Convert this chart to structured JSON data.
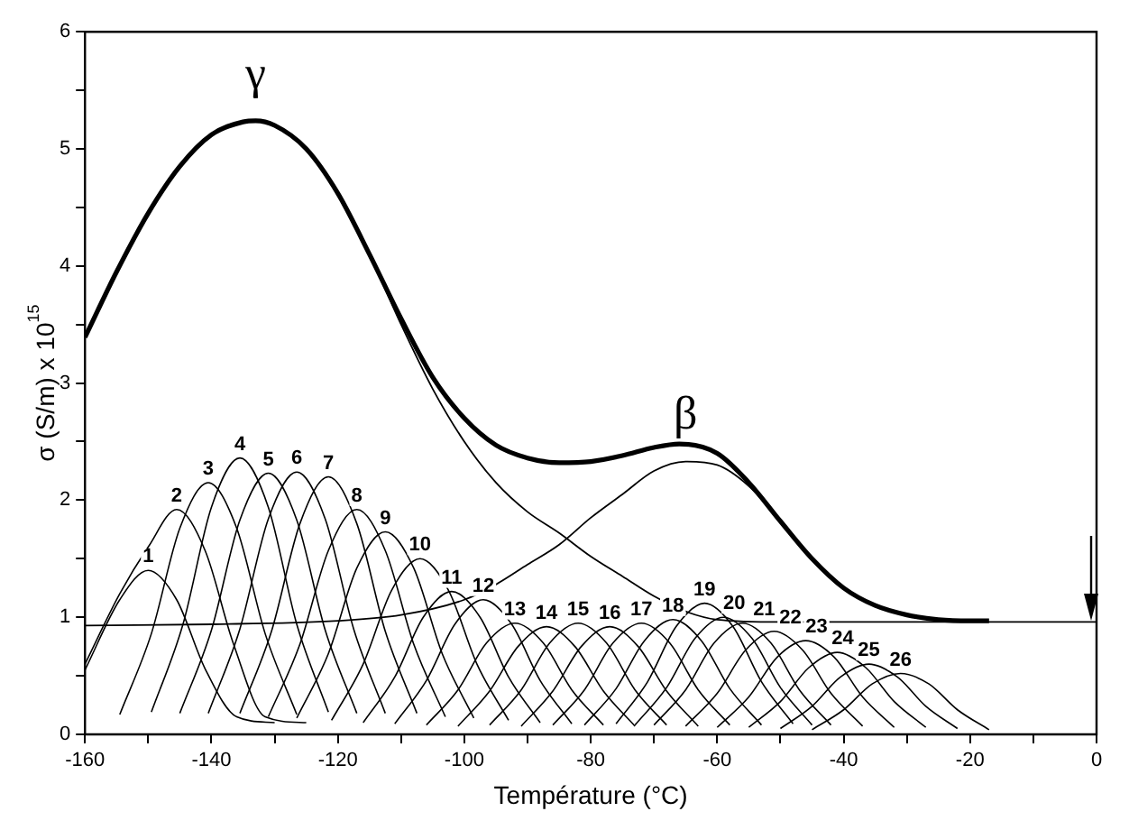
{
  "chart_data": {
    "type": "line",
    "xlabel": "Température (°C)",
    "ylabel": "σ (S/m) x 10$^{15}$",
    "xlim": [
      -160,
      0
    ],
    "ylim": [
      0,
      6
    ],
    "xticks": [
      -160,
      {
        "value": -150,
        "label": null
      },
      -140,
      {
        "value": -130,
        "label": null
      },
      -120,
      {
        "value": -110,
        "label": null
      },
      -100,
      {
        "value": -90,
        "label": null
      },
      -80,
      {
        "value": -70,
        "label": null
      },
      -60,
      {
        "value": -50,
        "label": null
      },
      -40,
      {
        "value": -30,
        "label": null
      },
      -20,
      {
        "value": -10,
        "label": null
      },
      0
    ],
    "yticks": [
      0,
      {
        "value": 0.5,
        "label": null
      },
      1,
      {
        "value": 1.5,
        "label": null
      },
      2,
      {
        "value": 2.5,
        "label": null
      },
      3,
      {
        "value": 3.5,
        "label": null
      },
      4,
      {
        "value": 4.5,
        "label": null
      },
      5,
      {
        "value": 5.5,
        "label": null
      },
      6
    ],
    "grid": false,
    "legend": false,
    "marker": "none",
    "line_style": "solid",
    "series": [
      {
        "color": "#000000",
        "x": [
          -160,
          -155,
          -150,
          -145,
          -140,
          -135,
          -133,
          -130,
          -125,
          -120,
          -115,
          -110,
          -105,
          -100,
          -95,
          -90,
          -85,
          -80,
          -75,
          -70,
          -66,
          -60,
          -55,
          -50,
          -45,
          -40,
          -35,
          -30,
          -25,
          -20,
          -17
        ],
        "values": [
          3.39,
          3.95,
          4.45,
          4.85,
          5.12,
          5.23,
          5.24,
          5.2,
          5.0,
          4.62,
          4.1,
          3.55,
          3.05,
          2.7,
          2.47,
          2.36,
          2.32,
          2.33,
          2.38,
          2.45,
          2.48,
          2.4,
          2.15,
          1.82,
          1.5,
          1.25,
          1.1,
          1.02,
          0.98,
          0.97,
          0.97
        ]
      },
      {
        "name": "γ",
        "color": "#000000",
        "x": [
          -160,
          -155,
          -150,
          -145,
          -140,
          -135,
          -133,
          -130,
          -125,
          -120,
          -115,
          -110,
          -105,
          -100,
          -95,
          -90,
          -85,
          -80,
          -75,
          -70,
          -65,
          -60,
          -50,
          -40,
          -30,
          -20,
          0
        ],
        "values": [
          3.39,
          3.95,
          4.45,
          4.85,
          5.12,
          5.23,
          5.24,
          5.2,
          5.0,
          4.62,
          4.1,
          3.5,
          2.95,
          2.5,
          2.15,
          1.9,
          1.72,
          1.52,
          1.35,
          1.18,
          1.05,
          0.98,
          0.96,
          0.96,
          0.96,
          0.96,
          0.96
        ]
      },
      {
        "name": "β",
        "color": "#000000",
        "x": [
          -160,
          -140,
          -120,
          -110,
          -100,
          -95,
          -90,
          -85,
          -80,
          -75,
          -70,
          -65,
          -60,
          -55,
          -50,
          -45,
          -40,
          -35,
          -30,
          -25,
          -20
        ],
        "values": [
          0.93,
          0.94,
          0.97,
          1.02,
          1.15,
          1.28,
          1.45,
          1.62,
          1.85,
          2.05,
          2.25,
          2.33,
          2.3,
          2.12,
          1.82,
          1.5,
          1.25,
          1.1,
          1.02,
          0.98,
          0.97
        ]
      },
      {
        "name": "1",
        "color": "#000000",
        "x": [
          -160,
          -154.5,
          -150,
          -145.5,
          -141,
          -136,
          -130
        ],
        "values": [
          0.55,
          1.15,
          1.4,
          1.15,
          0.56,
          0.15,
          0.1
        ]
      },
      {
        "name": "2",
        "color": "#000000",
        "x": [
          -160,
          -154.5,
          -150,
          -145.5,
          -141,
          -136.5,
          -131.5,
          -125
        ],
        "values": [
          0.6,
          1.2,
          1.6,
          1.92,
          1.57,
          0.77,
          0.15,
          0.1
        ]
      },
      {
        "name": "3",
        "color": "#000000",
        "x": [
          -154.5,
          -149.5,
          -145,
          -140.5,
          -136,
          -131.5,
          -126.5
        ],
        "values": [
          0.17,
          0.86,
          1.76,
          2.15,
          1.76,
          0.86,
          0.17
        ]
      },
      {
        "name": "4",
        "color": "#000000",
        "x": [
          -149.5,
          -144.5,
          -140,
          -135.5,
          -131,
          -126.5,
          -121.5
        ],
        "values": [
          0.19,
          0.94,
          1.94,
          2.36,
          1.94,
          0.94,
          0.19
        ]
      },
      {
        "name": "5",
        "color": "#000000",
        "x": [
          -145,
          -140,
          -135.5,
          -131,
          -126.5,
          -122,
          -117
        ],
        "values": [
          0.18,
          0.89,
          1.83,
          2.23,
          1.83,
          0.89,
          0.18
        ]
      },
      {
        "name": "6",
        "color": "#000000",
        "x": [
          -140.5,
          -135.5,
          -131,
          -126.5,
          -122,
          -117.5,
          -112.5
        ],
        "values": [
          0.18,
          0.9,
          1.84,
          2.24,
          1.84,
          0.9,
          0.18
        ]
      },
      {
        "name": "7",
        "color": "#000000",
        "x": [
          -135.5,
          -130.5,
          -126,
          -121.5,
          -117,
          -112.5,
          -107.5
        ],
        "values": [
          0.18,
          0.88,
          1.8,
          2.2,
          1.8,
          0.88,
          0.18
        ]
      },
      {
        "name": "8",
        "color": "#000000",
        "x": [
          -131,
          -126,
          -121.5,
          -117,
          -112.5,
          -108,
          -103
        ],
        "values": [
          0.15,
          0.77,
          1.57,
          1.92,
          1.57,
          0.77,
          0.15
        ]
      },
      {
        "name": "9",
        "color": "#000000",
        "x": [
          -126.5,
          -121.5,
          -117,
          -112.5,
          -108,
          -103.5,
          -98.5
        ],
        "values": [
          0.14,
          0.69,
          1.42,
          1.73,
          1.42,
          0.69,
          0.14
        ]
      },
      {
        "name": "10",
        "color": "#000000",
        "x": [
          -121,
          -116,
          -111.5,
          -107,
          -102.5,
          -98,
          -93
        ],
        "values": [
          0.12,
          0.6,
          1.23,
          1.5,
          1.23,
          0.6,
          0.12
        ]
      },
      {
        "name": "11",
        "color": "#000000",
        "x": [
          -116,
          -111,
          -106.5,
          -102,
          -97.5,
          -93,
          -88
        ],
        "values": [
          0.1,
          0.49,
          1.0,
          1.22,
          1.0,
          0.49,
          0.1
        ]
      },
      {
        "name": "12",
        "color": "#000000",
        "x": [
          -111,
          -106,
          -101.5,
          -97,
          -92.5,
          -88,
          -83
        ],
        "values": [
          0.09,
          0.46,
          0.94,
          1.15,
          0.94,
          0.46,
          0.09
        ]
      },
      {
        "name": "13",
        "color": "#000000",
        "x": [
          -106,
          -101,
          -96.5,
          -92,
          -87.5,
          -83,
          -78
        ],
        "values": [
          0.08,
          0.38,
          0.78,
          0.95,
          0.78,
          0.38,
          0.08
        ]
      },
      {
        "name": "14",
        "color": "#000000",
        "x": [
          -101,
          -96,
          -91.5,
          -87,
          -82.5,
          -78,
          -73
        ],
        "values": [
          0.07,
          0.37,
          0.75,
          0.92,
          0.75,
          0.37,
          0.07
        ]
      },
      {
        "name": "15",
        "color": "#000000",
        "x": [
          -96,
          -91,
          -86.5,
          -82,
          -77.5,
          -73,
          -68
        ],
        "values": [
          0.08,
          0.38,
          0.78,
          0.95,
          0.78,
          0.38,
          0.08
        ]
      },
      {
        "name": "16",
        "color": "#000000",
        "x": [
          -91,
          -86,
          -81.5,
          -77,
          -72.5,
          -68,
          -63
        ],
        "values": [
          0.07,
          0.37,
          0.75,
          0.92,
          0.75,
          0.37,
          0.07
        ]
      },
      {
        "name": "17",
        "color": "#000000",
        "x": [
          -86,
          -81,
          -76.5,
          -72,
          -67.5,
          -63,
          -58
        ],
        "values": [
          0.08,
          0.38,
          0.78,
          0.95,
          0.78,
          0.38,
          0.08
        ]
      },
      {
        "name": "18",
        "color": "#000000",
        "x": [
          -81,
          -76,
          -71.5,
          -67,
          -62.5,
          -58,
          -53
        ],
        "values": [
          0.08,
          0.39,
          0.8,
          0.98,
          0.8,
          0.39,
          0.08
        ]
      },
      {
        "name": "19",
        "color": "#000000",
        "x": [
          -76,
          -71,
          -66.5,
          -62,
          -57.5,
          -53,
          -48
        ],
        "values": [
          0.09,
          0.45,
          0.92,
          1.12,
          0.92,
          0.45,
          0.09
        ]
      },
      {
        "name": "20",
        "color": "#000000",
        "x": [
          -73,
          -68,
          -63.5,
          -59,
          -54.5,
          -50,
          -45
        ],
        "values": [
          0.08,
          0.4,
          0.82,
          1.0,
          0.82,
          0.4,
          0.08
        ]
      },
      {
        "name": "21",
        "color": "#000000",
        "x": [
          -70,
          -65,
          -60.5,
          -56,
          -51.5,
          -47,
          -42
        ],
        "values": [
          0.08,
          0.38,
          0.78,
          0.95,
          0.78,
          0.38,
          0.08
        ]
      },
      {
        "name": "22",
        "color": "#000000",
        "x": [
          -65,
          -60,
          -55.5,
          -51,
          -46.5,
          -42,
          -37
        ],
        "values": [
          0.07,
          0.35,
          0.72,
          0.88,
          0.72,
          0.35,
          0.07
        ]
      },
      {
        "name": "23",
        "color": "#000000",
        "x": [
          -60,
          -55,
          -50.5,
          -46,
          -41.5,
          -37,
          -32
        ],
        "values": [
          0.06,
          0.32,
          0.66,
          0.8,
          0.66,
          0.32,
          0.06
        ]
      },
      {
        "name": "24",
        "color": "#000000",
        "x": [
          -55,
          -50,
          -45.5,
          -41,
          -36.5,
          -32,
          -27
        ],
        "values": [
          0.06,
          0.28,
          0.57,
          0.7,
          0.57,
          0.28,
          0.06
        ]
      },
      {
        "name": "25",
        "color": "#000000",
        "x": [
          -50,
          -45,
          -40.5,
          -36,
          -31.5,
          -27,
          -22
        ],
        "values": [
          0.05,
          0.24,
          0.49,
          0.6,
          0.49,
          0.24,
          0.05
        ]
      },
      {
        "name": "26",
        "color": "#000000",
        "x": [
          -45,
          -40,
          -35.5,
          -31,
          -26.5,
          -22,
          -17
        ],
        "values": [
          0.04,
          0.21,
          0.43,
          0.52,
          0.43,
          0.21,
          0.04
        ]
      }
    ]
  }
}
